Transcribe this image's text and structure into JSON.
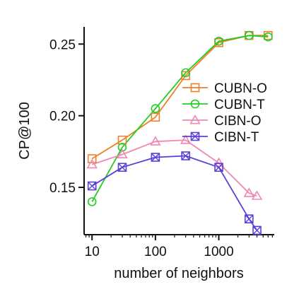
{
  "chart_data": {
    "type": "line",
    "xlabel": "number of neighbors",
    "ylabel": "CP@100",
    "xscale": "log",
    "xlim": [
      7.5,
      7500
    ],
    "ylim": [
      0.117,
      0.262
    ],
    "xticks": [
      10,
      100,
      1000
    ],
    "xtick_labels": [
      "10",
      "100",
      "1000"
    ],
    "yticks": [
      0.15,
      0.2,
      0.25
    ],
    "ytick_labels": [
      "0.15",
      "0.20",
      "0.25"
    ],
    "grid": false,
    "legend_position": "center-right",
    "series": [
      {
        "name": "CUBN-O",
        "color": "#f07f29",
        "marker": "square",
        "x": [
          10,
          30,
          100,
          300,
          1000,
          3000,
          6000
        ],
        "y": [
          0.17,
          0.183,
          0.199,
          0.228,
          0.251,
          0.256,
          0.256
        ]
      },
      {
        "name": "CUBN-T",
        "color": "#22cc22",
        "marker": "circle",
        "x": [
          10,
          30,
          100,
          300,
          1000,
          3000,
          6000
        ],
        "y": [
          0.14,
          0.178,
          0.205,
          0.23,
          0.252,
          0.256,
          0.255
        ]
      },
      {
        "name": "CIBN-O",
        "color": "#f087b4",
        "marker": "triangle",
        "x": [
          10,
          30,
          100,
          300,
          1000,
          3000,
          4000
        ],
        "y": [
          0.166,
          0.173,
          0.182,
          0.183,
          0.167,
          0.146,
          0.144
        ]
      },
      {
        "name": "CIBN-T",
        "color": "#5b3fd9",
        "marker": "xsquare",
        "x": [
          10,
          30,
          100,
          300,
          1000,
          3000,
          4000
        ],
        "y": [
          0.151,
          0.164,
          0.171,
          0.172,
          0.164,
          0.128,
          0.12
        ]
      }
    ]
  }
}
